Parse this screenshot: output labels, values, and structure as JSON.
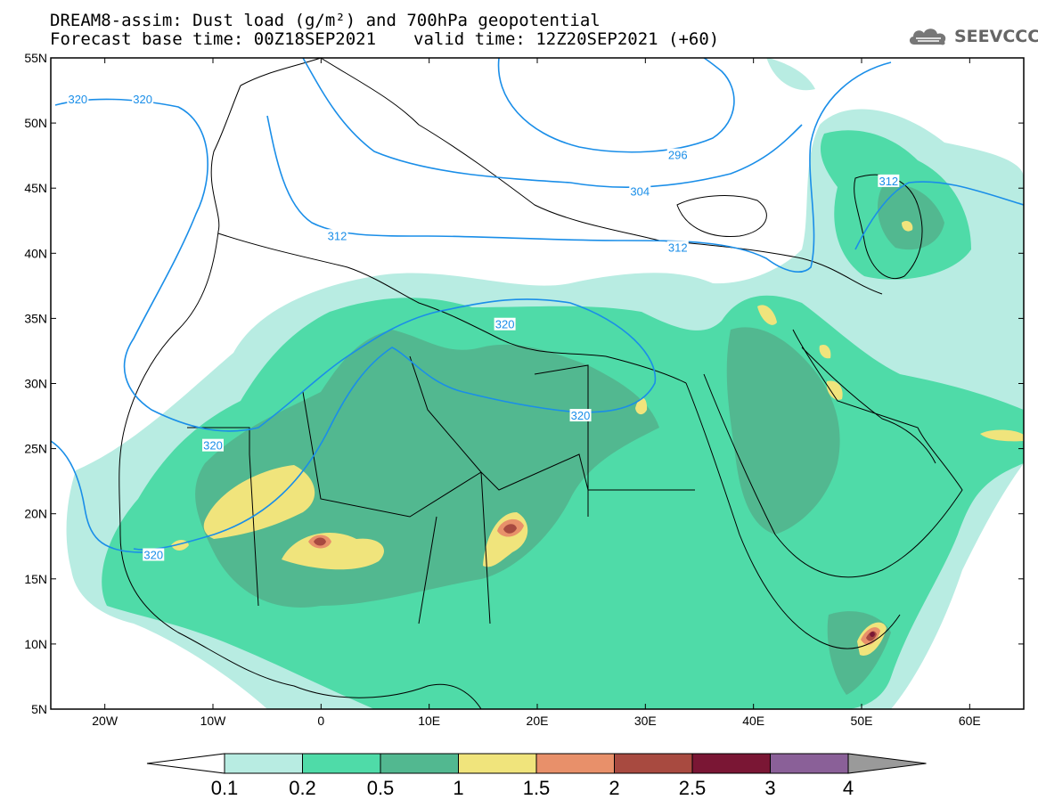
{
  "header": {
    "line1": "DREAM8-assim: Dust load (g/m²) and 700hPa geopotential",
    "line2_base": "Forecast base time: 00Z18SEP2021",
    "line2_valid": "valid time: 12Z20SEP2021 (+60)"
  },
  "logo": {
    "text": "SEEVCCC",
    "icon": "cloud-icon"
  },
  "map": {
    "lon_range": [
      -25,
      65
    ],
    "lat_range": [
      5,
      55
    ],
    "x_ticks": [
      {
        "lon": -20,
        "label": "20W"
      },
      {
        "lon": -10,
        "label": "10W"
      },
      {
        "lon": 0,
        "label": "0"
      },
      {
        "lon": 10,
        "label": "10E"
      },
      {
        "lon": 20,
        "label": "20E"
      },
      {
        "lon": 30,
        "label": "30E"
      },
      {
        "lon": 40,
        "label": "40E"
      },
      {
        "lon": 50,
        "label": "50E"
      },
      {
        "lon": 60,
        "label": "60E"
      }
    ],
    "y_ticks": [
      {
        "lat": 55,
        "label": "55N"
      },
      {
        "lat": 50,
        "label": "50N"
      },
      {
        "lat": 45,
        "label": "45N"
      },
      {
        "lat": 40,
        "label": "40N"
      },
      {
        "lat": 35,
        "label": "35N"
      },
      {
        "lat": 30,
        "label": "30N"
      },
      {
        "lat": 25,
        "label": "25N"
      },
      {
        "lat": 20,
        "label": "20N"
      },
      {
        "lat": 15,
        "label": "15N"
      },
      {
        "lat": 10,
        "label": "10N"
      },
      {
        "lat": 5,
        "label": "5N"
      }
    ],
    "contour_labels": [
      {
        "text": "320",
        "lon": -22.5,
        "lat": 51.8
      },
      {
        "text": "320",
        "lon": -16.5,
        "lat": 51.8
      },
      {
        "text": "296",
        "lon": 33,
        "lat": 47.5
      },
      {
        "text": "304",
        "lon": 29.5,
        "lat": 44.7
      },
      {
        "text": "312",
        "lon": 52.5,
        "lat": 45.5
      },
      {
        "text": "312",
        "lon": 1.5,
        "lat": 41.3
      },
      {
        "text": "312",
        "lon": 33,
        "lat": 40.4
      },
      {
        "text": "320",
        "lon": 17,
        "lat": 34.5
      },
      {
        "text": "320",
        "lon": 24,
        "lat": 27.5
      },
      {
        "text": "320",
        "lon": -10,
        "lat": 25.2
      },
      {
        "text": "320",
        "lon": -15.5,
        "lat": 16.8
      }
    ]
  },
  "colorbar": {
    "colors": [
      "#b8ece2",
      "#4fdba8",
      "#52b890",
      "#f0e47c",
      "#e8906a",
      "#a84a40",
      "#7a1634",
      "#8a6098",
      "#9a9a9a"
    ],
    "labels": [
      "0.1",
      "0.2",
      "0.5",
      "1",
      "1.5",
      "2",
      "2.5",
      "3",
      "4"
    ]
  }
}
